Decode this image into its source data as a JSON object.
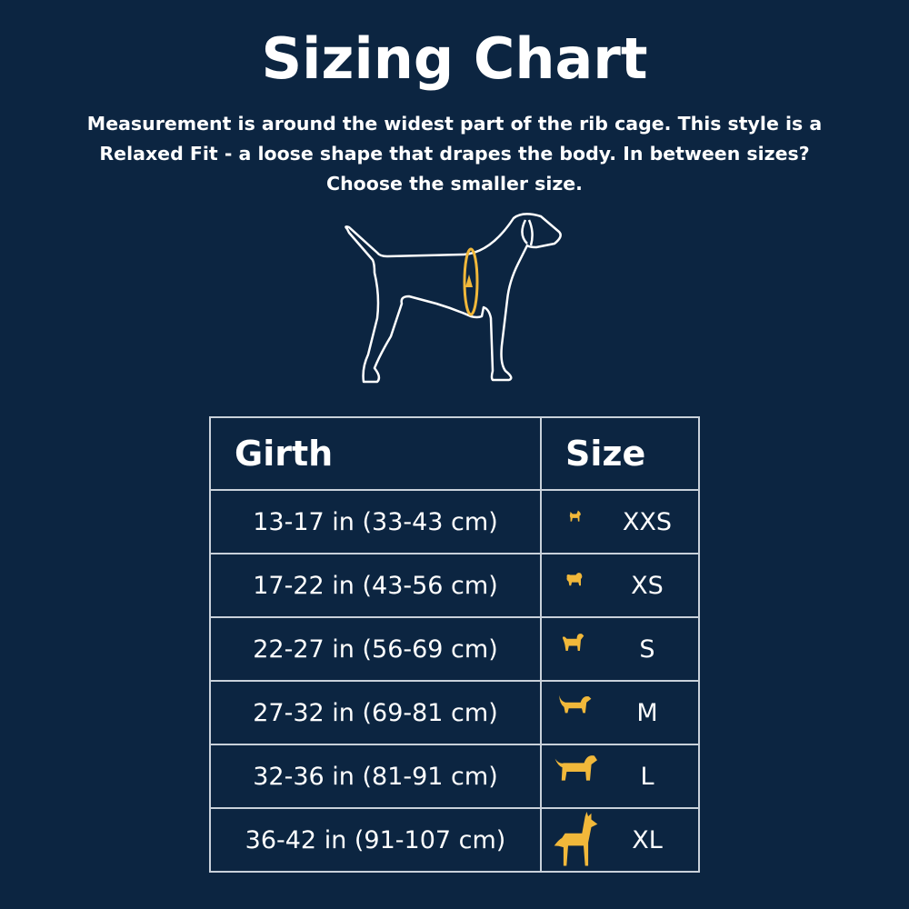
{
  "title": "Sizing Chart",
  "description": "Measurement is around the widest part of the rib cage. This style is a Relaxed Fit - a loose shape that drapes the body. In between sizes? Choose the smaller size.",
  "colors": {
    "background": "#0c2541",
    "accent": "#f1b83a",
    "text": "#ffffff",
    "border": "#c9d1da"
  },
  "illustration": "dog-outline-with-girth-measurement-arrow",
  "table": {
    "headers": {
      "girth": "Girth",
      "size": "Size"
    },
    "rows": [
      {
        "girth": "13-17 in (33-43 cm)",
        "size": "XXS",
        "icon": "chihuahua-icon"
      },
      {
        "girth": "17-22 in (43-56 cm)",
        "size": "XS",
        "icon": "pomeranian-icon"
      },
      {
        "girth": "22-27 in (56-69 cm)",
        "size": "S",
        "icon": "poodle-icon"
      },
      {
        "girth": "27-32 in (69-81 cm)",
        "size": "M",
        "icon": "retriever-icon"
      },
      {
        "girth": "32-36 in (81-91 cm)",
        "size": "L",
        "icon": "labrador-icon"
      },
      {
        "girth": "36-42 in (91-107 cm)",
        "size": "XL",
        "icon": "great-dane-icon"
      }
    ]
  }
}
